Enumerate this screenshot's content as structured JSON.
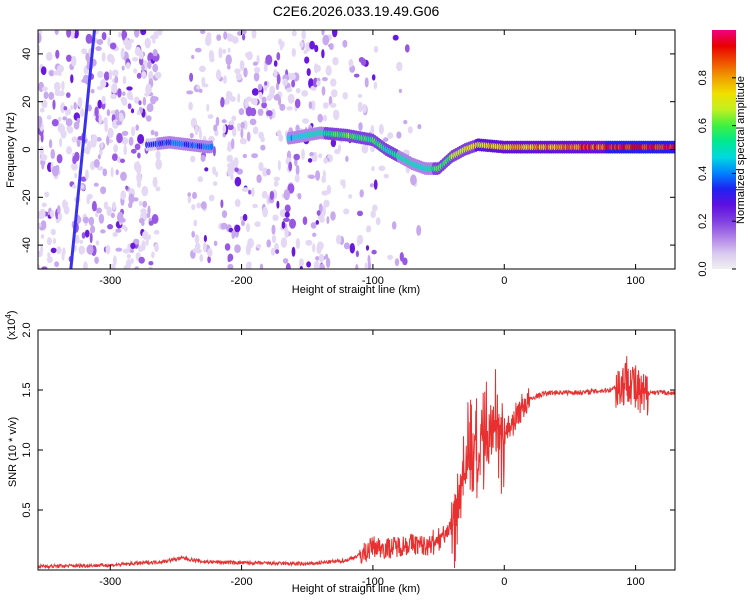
{
  "title": "C2E6.2026.033.19.49.G06",
  "chart_data": [
    {
      "type": "heatmap",
      "xlabel": "Height of straight line (km)",
      "ylabel": "Frequency (Hz)",
      "xlim": [
        -355,
        130
      ],
      "ylim": [
        -50,
        50
      ],
      "xticks": [
        -300,
        -200,
        -100,
        0,
        100
      ],
      "yticks": [
        -40,
        -20,
        0,
        20,
        40
      ],
      "colorbar": {
        "label": "Normalized spectral amplitude",
        "range": [
          0,
          1
        ],
        "ticks": [
          "0.0",
          "0.2",
          "0.4",
          "0.6",
          "0.8"
        ],
        "tick_values": [
          0.0,
          0.2,
          0.4,
          0.6,
          0.8
        ],
        "colormap": [
          "#f0f0f0",
          "#d8c8f0",
          "#b080e8",
          "#8040e0",
          "#6010e0",
          "#2020f0",
          "#0080ff",
          "#00d8e0",
          "#00e890",
          "#40f040",
          "#c0f020",
          "#f0e000",
          "#f0a000",
          "#f05000",
          "#e80000",
          "#f00080"
        ]
      },
      "ridge": [
        {
          "x": -270,
          "f": 2
        },
        {
          "x": -255,
          "f": 3
        },
        {
          "x": -240,
          "f": 2
        },
        {
          "x": -225,
          "f": 1
        },
        {
          "x": -160,
          "f": 5
        },
        {
          "x": -140,
          "f": 7
        },
        {
          "x": -120,
          "f": 6
        },
        {
          "x": -100,
          "f": 4
        },
        {
          "x": -90,
          "f": 0
        },
        {
          "x": -80,
          "f": -3
        },
        {
          "x": -70,
          "f": -6
        },
        {
          "x": -60,
          "f": -8
        },
        {
          "x": -50,
          "f": -8
        },
        {
          "x": -40,
          "f": -3
        },
        {
          "x": -30,
          "f": 0
        },
        {
          "x": -20,
          "f": 2
        },
        {
          "x": 0,
          "f": 1
        },
        {
          "x": 40,
          "f": 1
        },
        {
          "x": 80,
          "f": 1
        },
        {
          "x": 130,
          "f": 1
        }
      ],
      "ridge_amplitude": [
        {
          "x": -270,
          "a": 0.35
        },
        {
          "x": -230,
          "a": 0.4
        },
        {
          "x": -160,
          "a": 0.45
        },
        {
          "x": -120,
          "a": 0.6
        },
        {
          "x": -90,
          "a": 0.55
        },
        {
          "x": -60,
          "a": 0.5
        },
        {
          "x": -30,
          "a": 0.7
        },
        {
          "x": 0,
          "a": 0.75
        },
        {
          "x": 40,
          "a": 0.8
        },
        {
          "x": 80,
          "a": 0.9
        },
        {
          "x": 130,
          "a": 0.92
        }
      ],
      "diagonal_trace": [
        {
          "x": -330,
          "f": -50
        },
        {
          "x": -312,
          "f": 50
        }
      ]
    },
    {
      "type": "line",
      "xlabel": "Height of straight line (km)",
      "ylabel": "SNR (10 * v/v)",
      "scale_label": "(x10",
      "scale_exp": "4",
      "xlim": [
        -355,
        130
      ],
      "ylim": [
        0,
        2.0
      ],
      "xticks": [
        -300,
        -200,
        -100,
        0,
        100
      ],
      "yticks": [
        "0.5",
        "1.0",
        "1.5",
        "2.0"
      ],
      "ytick_values": [
        0.5,
        1.0,
        1.5,
        2.0
      ],
      "color": "#e83030",
      "series": [
        {
          "x": [
            -355,
            -300,
            -260,
            -245,
            -230,
            -200,
            -150,
            -120,
            -105,
            -100,
            -90,
            -80,
            -70,
            -60,
            -50,
            -45,
            -40,
            -35,
            -30,
            -25,
            -20,
            -15,
            -10,
            -5,
            0,
            5,
            10,
            15,
            20,
            25,
            30,
            40,
            50,
            60,
            70,
            80,
            90,
            95,
            100,
            105,
            110,
            120,
            130
          ],
          "values": [
            0.03,
            0.04,
            0.07,
            0.1,
            0.07,
            0.06,
            0.05,
            0.08,
            0.15,
            0.2,
            0.18,
            0.2,
            0.22,
            0.2,
            0.25,
            0.3,
            0.4,
            0.6,
            0.9,
            1.0,
            0.9,
            1.0,
            1.1,
            1.2,
            1.15,
            1.2,
            1.3,
            1.38,
            1.42,
            1.45,
            1.47,
            1.48,
            1.48,
            1.48,
            1.49,
            1.5,
            1.55,
            1.62,
            1.5,
            1.42,
            1.48,
            1.48,
            1.47
          ]
        }
      ]
    }
  ]
}
